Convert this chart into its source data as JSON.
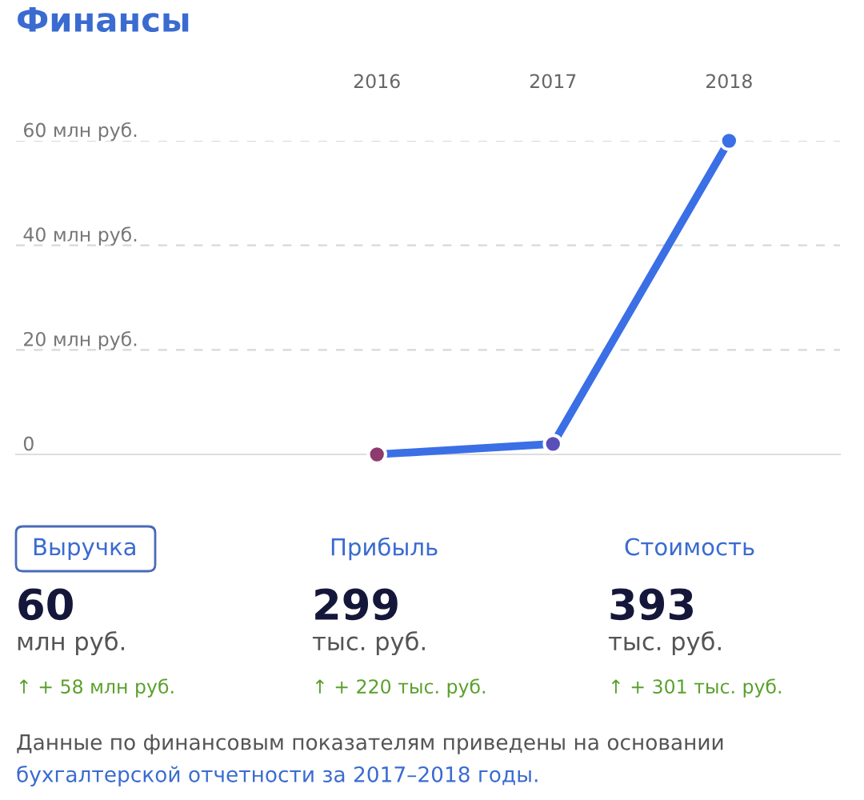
{
  "chart_data": [
    {
      "type": "line",
      "title": "Финансы",
      "categories": [
        "2016",
        "2017",
        "2018"
      ],
      "series": [
        {
          "color": "#3b6fe6",
          "colors": [
            "#8e3a6e",
            "#5a4fb8",
            "#3b6fe6"
          ],
          "values": [
            0,
            2,
            60
          ]
        }
      ],
      "ylim": [
        0,
        60
      ],
      "yticks": [
        0,
        {
          "value": 20,
          "label": "20 млн руб."
        },
        {
          "value": 40,
          "label": "40 млн руб."
        },
        {
          "value": 60,
          "label": "60 млн руб."
        }
      ],
      "grid": "y",
      "marker": "circle",
      "line_style": "solid"
    },
    {
      "type": "other",
      "annotations": [
        "Выручка",
        "60",
        "млн руб.",
        "↑ + 58 млн руб.",
        "Прибыль",
        "299",
        "тыс. руб.",
        "↑ + 220 тыс. руб.",
        "Стоимость",
        "393",
        "тыс. руб.",
        "↑ + 301 тыс. руб.",
        "Данные по финансовым показателям приведены на основании",
        "бухгалтерской отчетности за 2017–2018 годы."
      ]
    }
  ]
}
